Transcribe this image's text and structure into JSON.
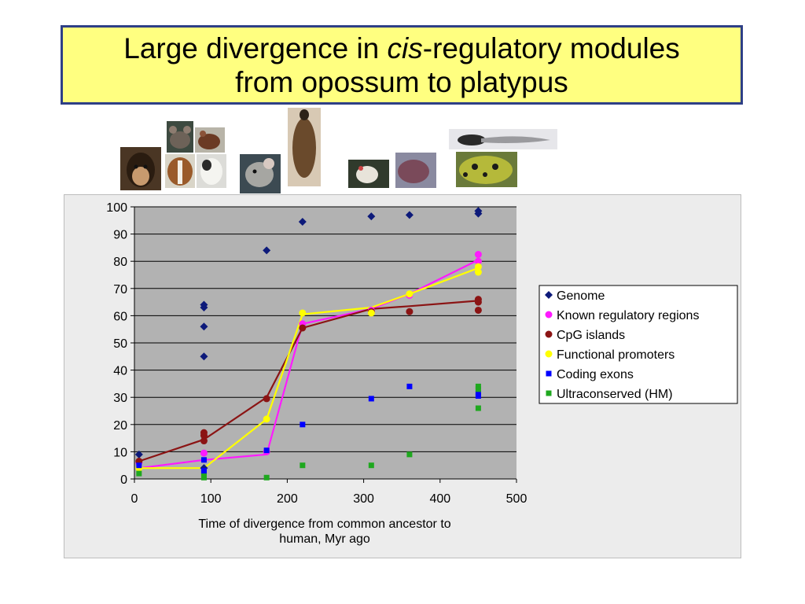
{
  "slide": {
    "title_line1_pre": "Large divergence in ",
    "title_line1_em": "cis",
    "title_line1_post": "-regulatory modules",
    "title_line2": "from opossum to platypus"
  },
  "photos": [
    {
      "name": "chimpanzee-photo",
      "label": "chimpanzee"
    },
    {
      "name": "mouse-photo",
      "label": "mouse"
    },
    {
      "name": "rat-photo",
      "label": "rat"
    },
    {
      "name": "dog-photo",
      "label": "dog"
    },
    {
      "name": "cow-photo",
      "label": "cow"
    },
    {
      "name": "opossum-photo",
      "label": "opossum"
    },
    {
      "name": "platypus-photo",
      "label": "platypus"
    },
    {
      "name": "chicken-photo",
      "label": "chicken"
    },
    {
      "name": "lizard-photo",
      "label": "lizard"
    },
    {
      "name": "zebrafish-photo",
      "label": "zebrafish"
    },
    {
      "name": "frog-photo",
      "label": "frog"
    }
  ],
  "chart_data": {
    "type": "scatter",
    "xlabel": "Time of divergence from common ancestor to human, Myr ago",
    "xlabel_lines": [
      "Time of divergence from common ancestor to",
      "human, Myr ago"
    ],
    "ylabel": "",
    "xlim": [
      0,
      500
    ],
    "ylim": [
      0,
      100
    ],
    "xticks": [
      0,
      100,
      200,
      300,
      400,
      500
    ],
    "yticks": [
      0,
      10,
      20,
      30,
      40,
      50,
      60,
      70,
      80,
      90,
      100
    ],
    "grid": "horizontal",
    "legend_position": "right",
    "series": [
      {
        "name": "Genome",
        "marker": "diamond",
        "color": "#0d1a7a",
        "points": [
          [
            6,
            9
          ],
          [
            91,
            64
          ],
          [
            91,
            63
          ],
          [
            91,
            56
          ],
          [
            91,
            45
          ],
          [
            91,
            4
          ],
          [
            173,
            84
          ],
          [
            220,
            94.5
          ],
          [
            310,
            96.5
          ],
          [
            360,
            97
          ],
          [
            450,
            98.5
          ],
          [
            450,
            97.5
          ]
        ],
        "line": []
      },
      {
        "name": "Known regulatory regions",
        "marker": "circle",
        "color": "#ff1aff",
        "points": [
          [
            6,
            6
          ],
          [
            91,
            9.5
          ],
          [
            173,
            10
          ],
          [
            220,
            57
          ],
          [
            310,
            62
          ],
          [
            360,
            67.5
          ],
          [
            450,
            82.5
          ],
          [
            450,
            80
          ]
        ],
        "line": [
          [
            6,
            4
          ],
          [
            91,
            7
          ],
          [
            173,
            9
          ],
          [
            220,
            57
          ],
          [
            310,
            62.5
          ],
          [
            360,
            68
          ],
          [
            450,
            80.5
          ]
        ]
      },
      {
        "name": "CpG islands",
        "marker": "circle",
        "color": "#8b1414",
        "points": [
          [
            6,
            6.5
          ],
          [
            91,
            17
          ],
          [
            91,
            16
          ],
          [
            91,
            14
          ],
          [
            173,
            29.5
          ],
          [
            220,
            55.5
          ],
          [
            310,
            61.5
          ],
          [
            360,
            61.5
          ],
          [
            450,
            66
          ],
          [
            450,
            65
          ],
          [
            450,
            62
          ]
        ],
        "line": [
          [
            6,
            6.5
          ],
          [
            91,
            14.5
          ],
          [
            173,
            30
          ],
          [
            220,
            55.5
          ],
          [
            310,
            62.5
          ],
          [
            360,
            63.5
          ],
          [
            450,
            65.5
          ]
        ]
      },
      {
        "name": "Functional promoters",
        "marker": "circle",
        "color": "#ffff00",
        "points": [
          [
            6,
            4
          ],
          [
            173,
            22
          ],
          [
            220,
            61
          ],
          [
            310,
            61
          ],
          [
            360,
            68
          ],
          [
            450,
            78
          ],
          [
            450,
            76
          ]
        ],
        "line": [
          [
            6,
            4
          ],
          [
            91,
            4
          ],
          [
            173,
            22
          ],
          [
            220,
            60.5
          ],
          [
            310,
            63
          ],
          [
            360,
            68
          ],
          [
            450,
            77.5
          ]
        ]
      },
      {
        "name": "Coding exons",
        "marker": "square",
        "color": "#0000ff",
        "points": [
          [
            6,
            5
          ],
          [
            91,
            7
          ],
          [
            91,
            3
          ],
          [
            91,
            2.5
          ],
          [
            173,
            10.5
          ],
          [
            220,
            20
          ],
          [
            310,
            29.5
          ],
          [
            360,
            34
          ],
          [
            450,
            31.5
          ],
          [
            450,
            30.5
          ]
        ],
        "line": []
      },
      {
        "name": "Ultraconserved (HM)",
        "marker": "square",
        "color": "#1fa81f",
        "points": [
          [
            6,
            2
          ],
          [
            91,
            1
          ],
          [
            91,
            0.5
          ],
          [
            173,
            0.5
          ],
          [
            220,
            5
          ],
          [
            310,
            5
          ],
          [
            360,
            9
          ],
          [
            450,
            34
          ],
          [
            450,
            33
          ],
          [
            450,
            26
          ]
        ],
        "line": []
      }
    ]
  }
}
